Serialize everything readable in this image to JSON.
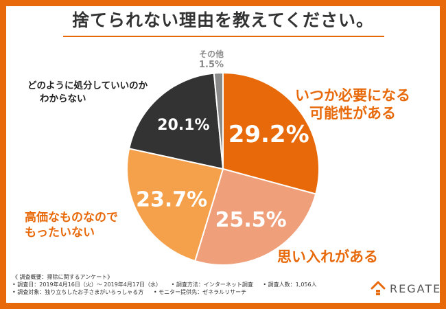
{
  "title": "捨てられない理由を教えてください。",
  "colors": {
    "frame": "#e8690a",
    "slice_main": "#e8690a",
    "slice_pink": "#ef9f7a",
    "slice_light": "#f5a04b",
    "slice_dark": "#333333",
    "slice_gray": "#8a8a8a"
  },
  "chart_data": {
    "type": "pie",
    "title": "捨てられない理由を教えてください。",
    "slices": [
      {
        "label": "いつか必要になる可能性がある",
        "value": 29.2,
        "display": "29.2%",
        "color": "#e8690a"
      },
      {
        "label": "思い入れがある",
        "value": 25.5,
        "display": "25.5%",
        "color": "#ef9f7a"
      },
      {
        "label": "高価なものなのでもったいない",
        "value": 23.7,
        "display": "23.7%",
        "color": "#f5a04b"
      },
      {
        "label": "どのように処分していいのかわからない",
        "value": 20.1,
        "display": "20.1%",
        "color": "#333333"
      },
      {
        "label": "その他",
        "value": 1.5,
        "display": "1.5%",
        "color": "#8a8a8a"
      }
    ]
  },
  "callouts": {
    "a_line1": "いつか必要になる",
    "a_line2": "可能性がある",
    "b_line1": "思い入れがある",
    "c_line1": "高価なものなので",
    "c_line2": "もったいない",
    "d_line1": "どのように処分していいのか",
    "d_line2": "わからない",
    "e_label": "その他",
    "e_pct": "1.5%"
  },
  "survey": {
    "heading": "《 調査概要：掃除に関するアンケート》",
    "date": "• 調査日：2019年4月16日（火）〜 2019年4月17日（水）",
    "method": "• 調査方法：インターネット調査",
    "count": "• 調査人数：1,056人",
    "target": "• 調査対象：独り立ちしたお子さまがいらっしゃる方",
    "provider": "• モニター提供先：ゼネラルリサーチ"
  },
  "logo": {
    "text": "REGATE",
    "icon": "house-icon"
  }
}
